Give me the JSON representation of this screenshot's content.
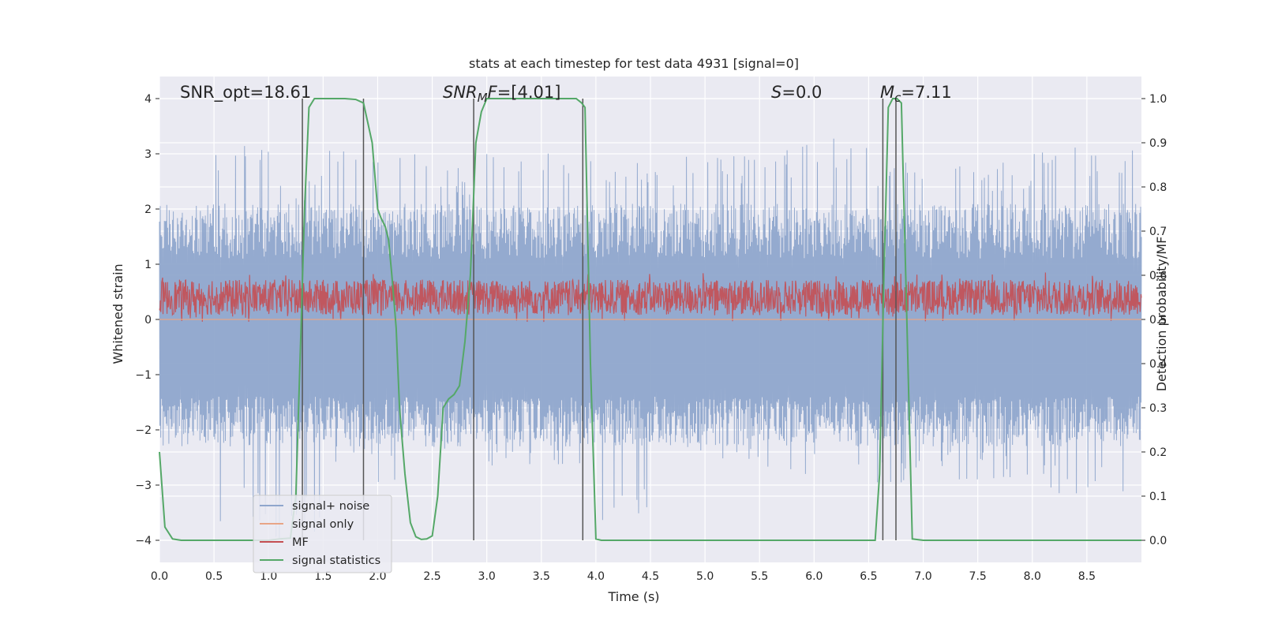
{
  "chart_data": {
    "type": "line",
    "title": "stats at each timestep for test data 4931 [signal=0]",
    "xlabel": "Time (s)",
    "ylabel": "Whitened strain",
    "ylabel_right": "Detection probability/MF",
    "xlim": [
      0.0,
      9.0
    ],
    "ylim": [
      -4.4,
      4.4
    ],
    "ylim_right": [
      -0.05,
      1.05
    ],
    "x_ticks": [
      0.0,
      0.5,
      1.0,
      1.5,
      2.0,
      2.5,
      3.0,
      3.5,
      4.0,
      4.5,
      5.0,
      5.5,
      6.0,
      6.5,
      7.0,
      7.5,
      8.0,
      8.5
    ],
    "x_tick_labels": [
      "0.0",
      "0.5",
      "1.0",
      "1.5",
      "2.0",
      "2.5",
      "3.0",
      "3.5",
      "4.0",
      "4.5",
      "5.0",
      "5.5",
      "6.0",
      "6.5",
      "7.0",
      "7.5",
      "8.0",
      "8.5"
    ],
    "y_ticks": [
      -4,
      -3,
      -2,
      -1,
      0,
      1,
      2,
      3,
      4
    ],
    "y_tick_labels": [
      "−4",
      "−3",
      "−2",
      "−1",
      "0",
      "1",
      "2",
      "3",
      "4"
    ],
    "y_ticks_right": [
      0.0,
      0.1,
      0.2,
      0.3,
      0.4,
      0.5,
      0.6,
      0.7,
      0.8,
      0.9,
      1.0
    ],
    "y_tick_labels_right": [
      "0.0",
      "0.1",
      "0.2",
      "0.3",
      "0.4",
      "0.5",
      "0.6",
      "0.7",
      "0.8",
      "0.9",
      "1.0"
    ],
    "grid": true,
    "annotations": {
      "snr_opt": "SNR_opt=18.61",
      "snr_mf_main": "SNR",
      "snr_mf_sub": "M",
      "snr_mf_rest": "F",
      "snr_mf_value": "=[4.01]",
      "s_symbol": "S",
      "s_value": "=0.0",
      "mc_symbol": "M",
      "mc_sub": "c",
      "mc_value": "=7.11"
    },
    "legend": {
      "position": "lower-left",
      "entries": [
        "signal+ noise",
        "signal only",
        "MF",
        "signal statistics"
      ]
    },
    "colors": {
      "background": "#eaeaf2",
      "grid": "#ffffff",
      "signal_noise": "#8fa6cc",
      "signal_only": "#e8a586",
      "mf": "#c44e52",
      "signal_statistics": "#55a868",
      "vline": "#555555"
    },
    "series": [
      {
        "name": "signal+ noise",
        "axis": "left",
        "description_envelope_upper": [
          2.0,
          3.3,
          2.6,
          3.2,
          3.0,
          2.8,
          3.0,
          3.2,
          3.1,
          3.0,
          3.0,
          3.2,
          3.3,
          3.0,
          3.3,
          2.9,
          3.2,
          3.1
        ],
        "description_envelope_lower": [
          -2.0,
          -3.7,
          -4.0,
          -2.6,
          -3.0,
          -2.6,
          -2.8,
          -2.8,
          -3.8,
          -2.6,
          -2.8,
          -2.8,
          -2.8,
          -3.0,
          -3.0,
          -3.0,
          -3.2,
          -3.3
        ]
      },
      {
        "name": "signal only",
        "axis": "left",
        "x": [
          0.0,
          9.0
        ],
        "y": [
          0.0,
          0.0
        ]
      },
      {
        "name": "MF",
        "axis": "right",
        "band": [
          0.5,
          0.6
        ]
      },
      {
        "name": "signal statistics",
        "axis": "right",
        "x": [
          0.0,
          0.05,
          0.12,
          0.2,
          0.3,
          0.5,
          0.8,
          1.0,
          1.1,
          1.2,
          1.25,
          1.3,
          1.33,
          1.37,
          1.42,
          1.5,
          1.6,
          1.7,
          1.8,
          1.87,
          1.95,
          2.0,
          2.03,
          2.07,
          2.1,
          2.13,
          2.17,
          2.2,
          2.25,
          2.3,
          2.35,
          2.4,
          2.45,
          2.5,
          2.55,
          2.6,
          2.65,
          2.7,
          2.75,
          2.8,
          2.85,
          2.9,
          2.95,
          3.0,
          3.2,
          3.5,
          3.7,
          3.82,
          3.87,
          3.9,
          3.95,
          4.0,
          4.05,
          4.3,
          6.0,
          6.56,
          6.6,
          6.64,
          6.68,
          6.72,
          6.76,
          6.8,
          6.85,
          6.9,
          7.0,
          8.0,
          9.0
        ],
        "y": [
          0.2,
          0.03,
          0.003,
          0.0,
          0.0,
          0.0,
          0.0,
          0.0,
          0.003,
          0.005,
          0.1,
          0.5,
          0.75,
          0.98,
          1.0,
          1.0,
          1.0,
          1.0,
          0.998,
          0.99,
          0.9,
          0.75,
          0.73,
          0.71,
          0.68,
          0.6,
          0.48,
          0.3,
          0.15,
          0.04,
          0.008,
          0.002,
          0.003,
          0.01,
          0.1,
          0.3,
          0.32,
          0.33,
          0.35,
          0.45,
          0.6,
          0.9,
          0.97,
          1.0,
          1.0,
          1.0,
          1.0,
          1.0,
          0.99,
          0.98,
          0.4,
          0.003,
          0.0,
          0.0,
          0.0,
          0.0,
          0.15,
          0.6,
          0.98,
          1.0,
          1.0,
          0.99,
          0.5,
          0.003,
          0.0,
          0.0,
          0.0
        ]
      }
    ],
    "vertical_lines_x": [
      1.31,
      1.87,
      2.88,
      3.88,
      6.63,
      6.75
    ]
  }
}
